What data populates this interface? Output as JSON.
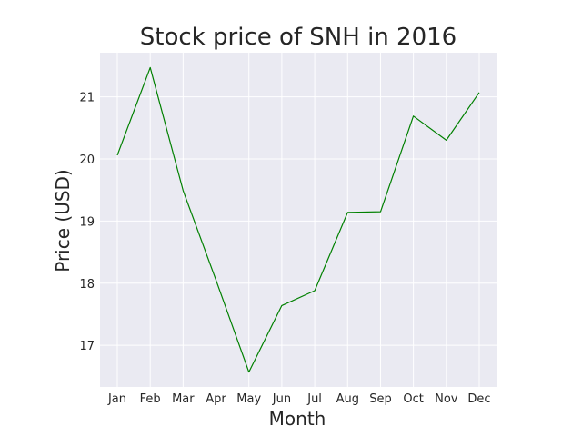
{
  "chart_data": {
    "type": "line",
    "title": "Stock price of SNH in 2016",
    "xlabel": "Month",
    "ylabel": "Price (USD)",
    "categories": [
      "Jan",
      "Feb",
      "Mar",
      "Apr",
      "May",
      "Jun",
      "Jul",
      "Aug",
      "Sep",
      "Oct",
      "Nov",
      "Dec"
    ],
    "series": [
      {
        "values": [
          20.06,
          21.47,
          19.49,
          18.05,
          16.57,
          17.64,
          17.88,
          19.14,
          19.15,
          20.69,
          20.3,
          21.07
        ],
        "color": "#008000"
      }
    ],
    "yticks": [
      17,
      18,
      19,
      20,
      21
    ],
    "ylim": [
      16.33,
      21.71
    ],
    "grid": true,
    "background": "#eaeaf2"
  }
}
